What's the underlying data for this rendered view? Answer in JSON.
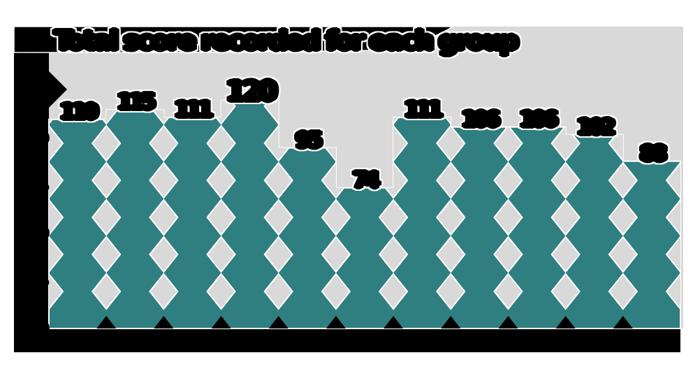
{
  "chart_data": {
    "type": "bar",
    "title": "Total score recorded for each group",
    "title_style": "illegible heavy black blob text with swoosh tail",
    "categories": [
      "Jan",
      "Feb",
      "Mar",
      "Apr",
      "May",
      "Jun",
      "Jul",
      "Aug",
      "Sep",
      "Oct",
      "Nov"
    ],
    "values": [
      110,
      115,
      111,
      120,
      95,
      74,
      111,
      106,
      106,
      102,
      88
    ],
    "bar_labels": [
      "110",
      "115",
      "111",
      "120",
      "95",
      "74",
      "111",
      "106",
      "106",
      "102",
      "88"
    ],
    "max_value_index": 3,
    "xlabel": "",
    "ylabel": "",
    "yticks": [
      0,
      25,
      50,
      75,
      100,
      125
    ],
    "ylim": [
      0,
      159
    ],
    "grid": false,
    "legend": "none",
    "text_rendering": "all axis text and labels appear as merged solid black blobs",
    "colors": {
      "bar_fill": "#2F7E80",
      "plot_background": "#D9D9D9",
      "pattern_hole": "#D9D9D9",
      "pattern_outline": "#FFFFFF",
      "text_blob": "#000000",
      "page_background": "#FFFFFF"
    },
    "pattern": "diamond-lattice holes punched through bars"
  }
}
